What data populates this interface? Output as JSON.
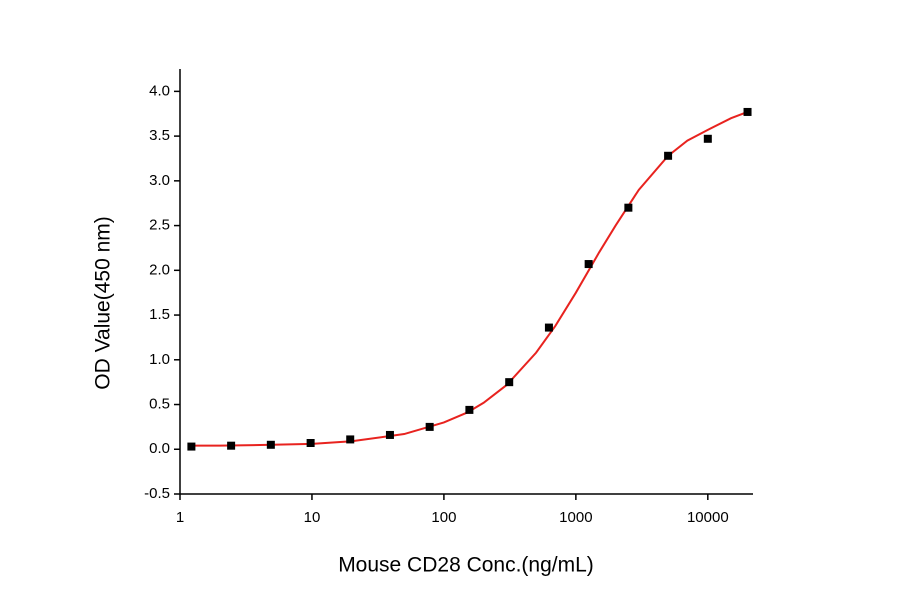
{
  "chart_data": {
    "type": "scatter",
    "xlabel": "Mouse CD28 Conc.(ng/mL)",
    "ylabel": "OD Value(450 nm)",
    "xscale": "log",
    "xlim": [
      1,
      22000
    ],
    "ylim": [
      -0.5,
      4.25
    ],
    "xticks": [
      1,
      10,
      100,
      1000,
      10000
    ],
    "yticks": [
      {
        "value": -0.5,
        "label": "-0.5"
      },
      {
        "value": 0,
        "label": "0.0"
      },
      0.5,
      {
        "value": 1,
        "label": "1.0"
      },
      1.5,
      {
        "value": 2,
        "label": "2.0"
      },
      2.5,
      {
        "value": 3,
        "label": "3.0"
      },
      3.5,
      {
        "value": 4,
        "label": "4.0"
      }
    ],
    "series": [
      {
        "style": "markers",
        "color": "#000000",
        "x": [
          1.22,
          2.44,
          4.88,
          9.77,
          19.5,
          39,
          78,
          156,
          312.5,
          625,
          1250,
          2500,
          5000,
          10000,
          20000
        ],
        "values": [
          0.03,
          0.04,
          0.05,
          0.07,
          0.11,
          0.16,
          0.25,
          0.44,
          0.75,
          1.36,
          2.07,
          2.7,
          3.28,
          3.47,
          3.77
        ]
      },
      {
        "style": "line",
        "color": "#e8231f",
        "x": [
          1.2,
          2,
          5,
          10,
          20,
          50,
          100,
          150,
          200,
          300,
          500,
          700,
          1000,
          1500,
          2000,
          3000,
          5000,
          7000,
          10000,
          15000,
          20000
        ],
        "values": [
          0.04,
          0.04,
          0.05,
          0.06,
          0.09,
          0.17,
          0.3,
          0.41,
          0.52,
          0.72,
          1.08,
          1.38,
          1.75,
          2.2,
          2.5,
          2.9,
          3.28,
          3.45,
          3.57,
          3.7,
          3.77
        ]
      }
    ]
  }
}
